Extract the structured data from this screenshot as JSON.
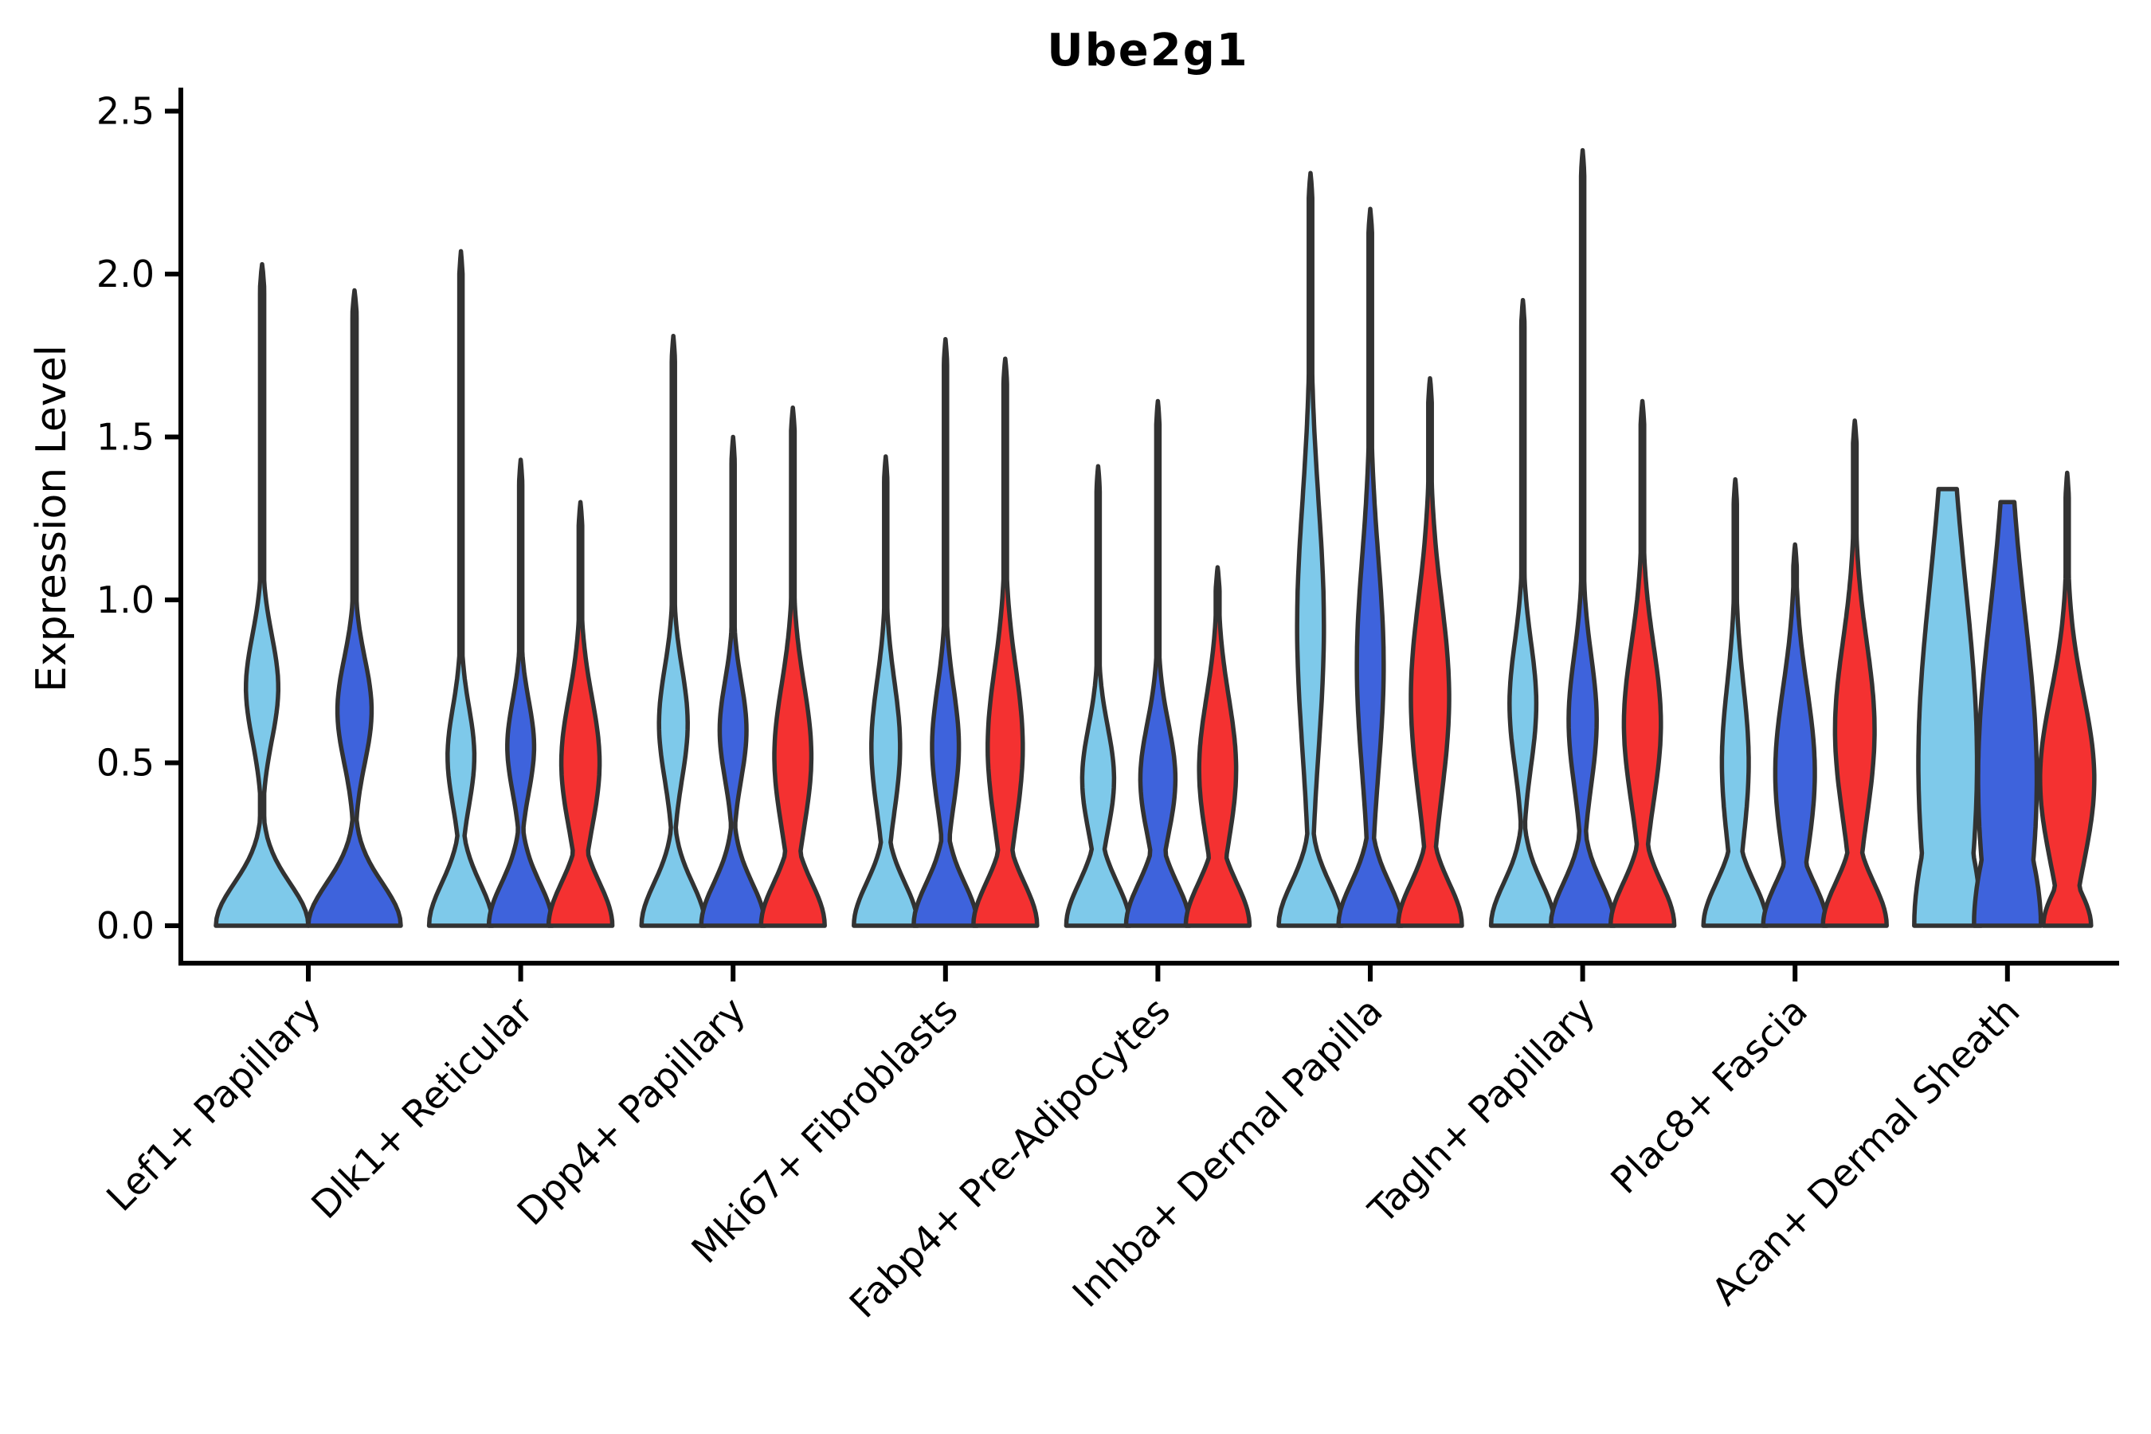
{
  "chart_data": {
    "type": "violin",
    "title": "Ube2g1",
    "xlabel": "",
    "ylabel": "Expression Level",
    "ylim": [
      0.0,
      2.5
    ],
    "yticks": [
      "0.0",
      "0.5",
      "1.0",
      "1.5",
      "2.0",
      "2.5"
    ],
    "ytick_values": [
      0.0,
      0.5,
      1.0,
      1.5,
      2.0,
      2.5
    ],
    "legend": "none",
    "grid": false,
    "categories": [
      "Lef1+ Papillary",
      "Dlk1+ Reticular",
      "Dpp4+ Papillary",
      "Mki67+ Fibroblasts",
      "Fabp4+ Pre-Adipocytes",
      "Inhba+ Dermal Papilla",
      "Tagln+ Papillary",
      "Plac8+ Fascia",
      "Acan+ Dermal Sheath"
    ],
    "sample_fill_colors": [
      "#7EC9EA",
      "#3E63DC",
      "#F43131"
    ],
    "outline_color": "#323232",
    "groups": [
      {
        "category": "Lef1+ Papillary",
        "violins": [
          {
            "color": 0,
            "max": 2.03,
            "bulge_c": 0.73,
            "bulge_s": 0.16,
            "bulge_amp": 0.35,
            "stem": 0.045
          },
          {
            "color": 1,
            "max": 1.95,
            "bulge_c": 0.66,
            "bulge_s": 0.16,
            "bulge_amp": 0.37,
            "stem": 0.045
          }
        ]
      },
      {
        "category": "Dlk1+ Reticular",
        "violins": [
          {
            "color": 0,
            "max": 2.07,
            "bulge_c": 0.52,
            "bulge_s": 0.15,
            "bulge_amp": 0.42,
            "stem": 0.05
          },
          {
            "color": 1,
            "max": 1.43,
            "bulge_c": 0.55,
            "bulge_s": 0.14,
            "bulge_amp": 0.42,
            "stem": 0.05
          },
          {
            "color": 2,
            "max": 1.3,
            "bulge_c": 0.5,
            "bulge_s": 0.2,
            "bulge_amp": 0.6,
            "stem": 0.055
          }
        ]
      },
      {
        "category": "Dpp4+ Papillary",
        "violins": [
          {
            "color": 0,
            "max": 1.81,
            "bulge_c": 0.62,
            "bulge_s": 0.17,
            "bulge_amp": 0.45,
            "stem": 0.05
          },
          {
            "color": 1,
            "max": 1.5,
            "bulge_c": 0.6,
            "bulge_s": 0.15,
            "bulge_amp": 0.42,
            "stem": 0.05
          },
          {
            "color": 2,
            "max": 1.59,
            "bulge_c": 0.52,
            "bulge_s": 0.22,
            "bulge_amp": 0.58,
            "stem": 0.055
          }
        ]
      },
      {
        "category": "Mki67+ Fibroblasts",
        "violins": [
          {
            "color": 0,
            "max": 1.44,
            "bulge_c": 0.55,
            "bulge_s": 0.2,
            "bulge_amp": 0.45,
            "stem": 0.05
          },
          {
            "color": 1,
            "max": 1.8,
            "bulge_c": 0.55,
            "bulge_s": 0.18,
            "bulge_amp": 0.42,
            "stem": 0.05
          },
          {
            "color": 2,
            "max": 1.74,
            "bulge_c": 0.55,
            "bulge_s": 0.24,
            "bulge_amp": 0.55,
            "stem": 0.055
          }
        ]
      },
      {
        "category": "Fabp4+ Pre-Adipocytes",
        "violins": [
          {
            "color": 0,
            "max": 1.41,
            "bulge_c": 0.45,
            "bulge_s": 0.16,
            "bulge_amp": 0.5,
            "stem": 0.05
          },
          {
            "color": 1,
            "max": 1.61,
            "bulge_c": 0.45,
            "bulge_s": 0.17,
            "bulge_amp": 0.55,
            "stem": 0.05
          },
          {
            "color": 2,
            "max": 1.1,
            "bulge_c": 0.48,
            "bulge_s": 0.22,
            "bulge_amp": 0.58,
            "stem": 0.06
          }
        ]
      },
      {
        "category": "Inhba+ Dermal Papilla",
        "violins": [
          {
            "color": 0,
            "max": 2.31,
            "bulge_c": 0.92,
            "bulge_s": 0.38,
            "bulge_amp": 0.42,
            "stem": 0.055
          },
          {
            "color": 1,
            "max": 2.2,
            "bulge_c": 0.8,
            "bulge_s": 0.33,
            "bulge_amp": 0.42,
            "stem": 0.055
          },
          {
            "color": 2,
            "max": 1.68,
            "bulge_c": 0.7,
            "bulge_s": 0.3,
            "bulge_amp": 0.6,
            "stem": 0.055
          }
        ]
      },
      {
        "category": "Tagln+ Papillary",
        "violins": [
          {
            "color": 0,
            "max": 1.92,
            "bulge_c": 0.68,
            "bulge_s": 0.19,
            "bulge_amp": 0.42,
            "stem": 0.05
          },
          {
            "color": 1,
            "max": 2.38,
            "bulge_c": 0.63,
            "bulge_s": 0.2,
            "bulge_amp": 0.44,
            "stem": 0.05
          },
          {
            "color": 2,
            "max": 1.61,
            "bulge_c": 0.62,
            "bulge_s": 0.24,
            "bulge_amp": 0.58,
            "stem": 0.055
          }
        ]
      },
      {
        "category": "Plac8+ Fascia",
        "violins": [
          {
            "color": 0,
            "max": 1.37,
            "bulge_c": 0.5,
            "bulge_s": 0.24,
            "bulge_amp": 0.42,
            "stem": 0.05
          },
          {
            "color": 1,
            "max": 1.17,
            "bulge_c": 0.47,
            "bulge_s": 0.26,
            "bulge_amp": 0.62,
            "stem": 0.055
          },
          {
            "color": 2,
            "max": 1.55,
            "bulge_c": 0.6,
            "bulge_s": 0.27,
            "bulge_amp": 0.62,
            "stem": 0.055
          }
        ]
      },
      {
        "category": "Acan+ Dermal Sheath",
        "violins": [
          {
            "color": 0,
            "max": 1.34,
            "bulge_c": 0.5,
            "bulge_s": 0.55,
            "bulge_amp": 0.92,
            "base_amp": 1.05,
            "base_sigma": 0.3,
            "stem": 0.08,
            "flat_top": true
          },
          {
            "color": 1,
            "max": 1.3,
            "bulge_c": 0.45,
            "bulge_s": 0.5,
            "bulge_amp": 0.92,
            "base_amp": 1.05,
            "base_sigma": 0.28,
            "stem": 0.08,
            "flat_top": true
          },
          {
            "color": 2,
            "max": 1.39,
            "bulge_c": 0.45,
            "bulge_s": 0.26,
            "bulge_amp": 0.85,
            "base_amp": 0.75,
            "base_sigma": 0.1,
            "stem": 0.05
          }
        ]
      }
    ]
  }
}
